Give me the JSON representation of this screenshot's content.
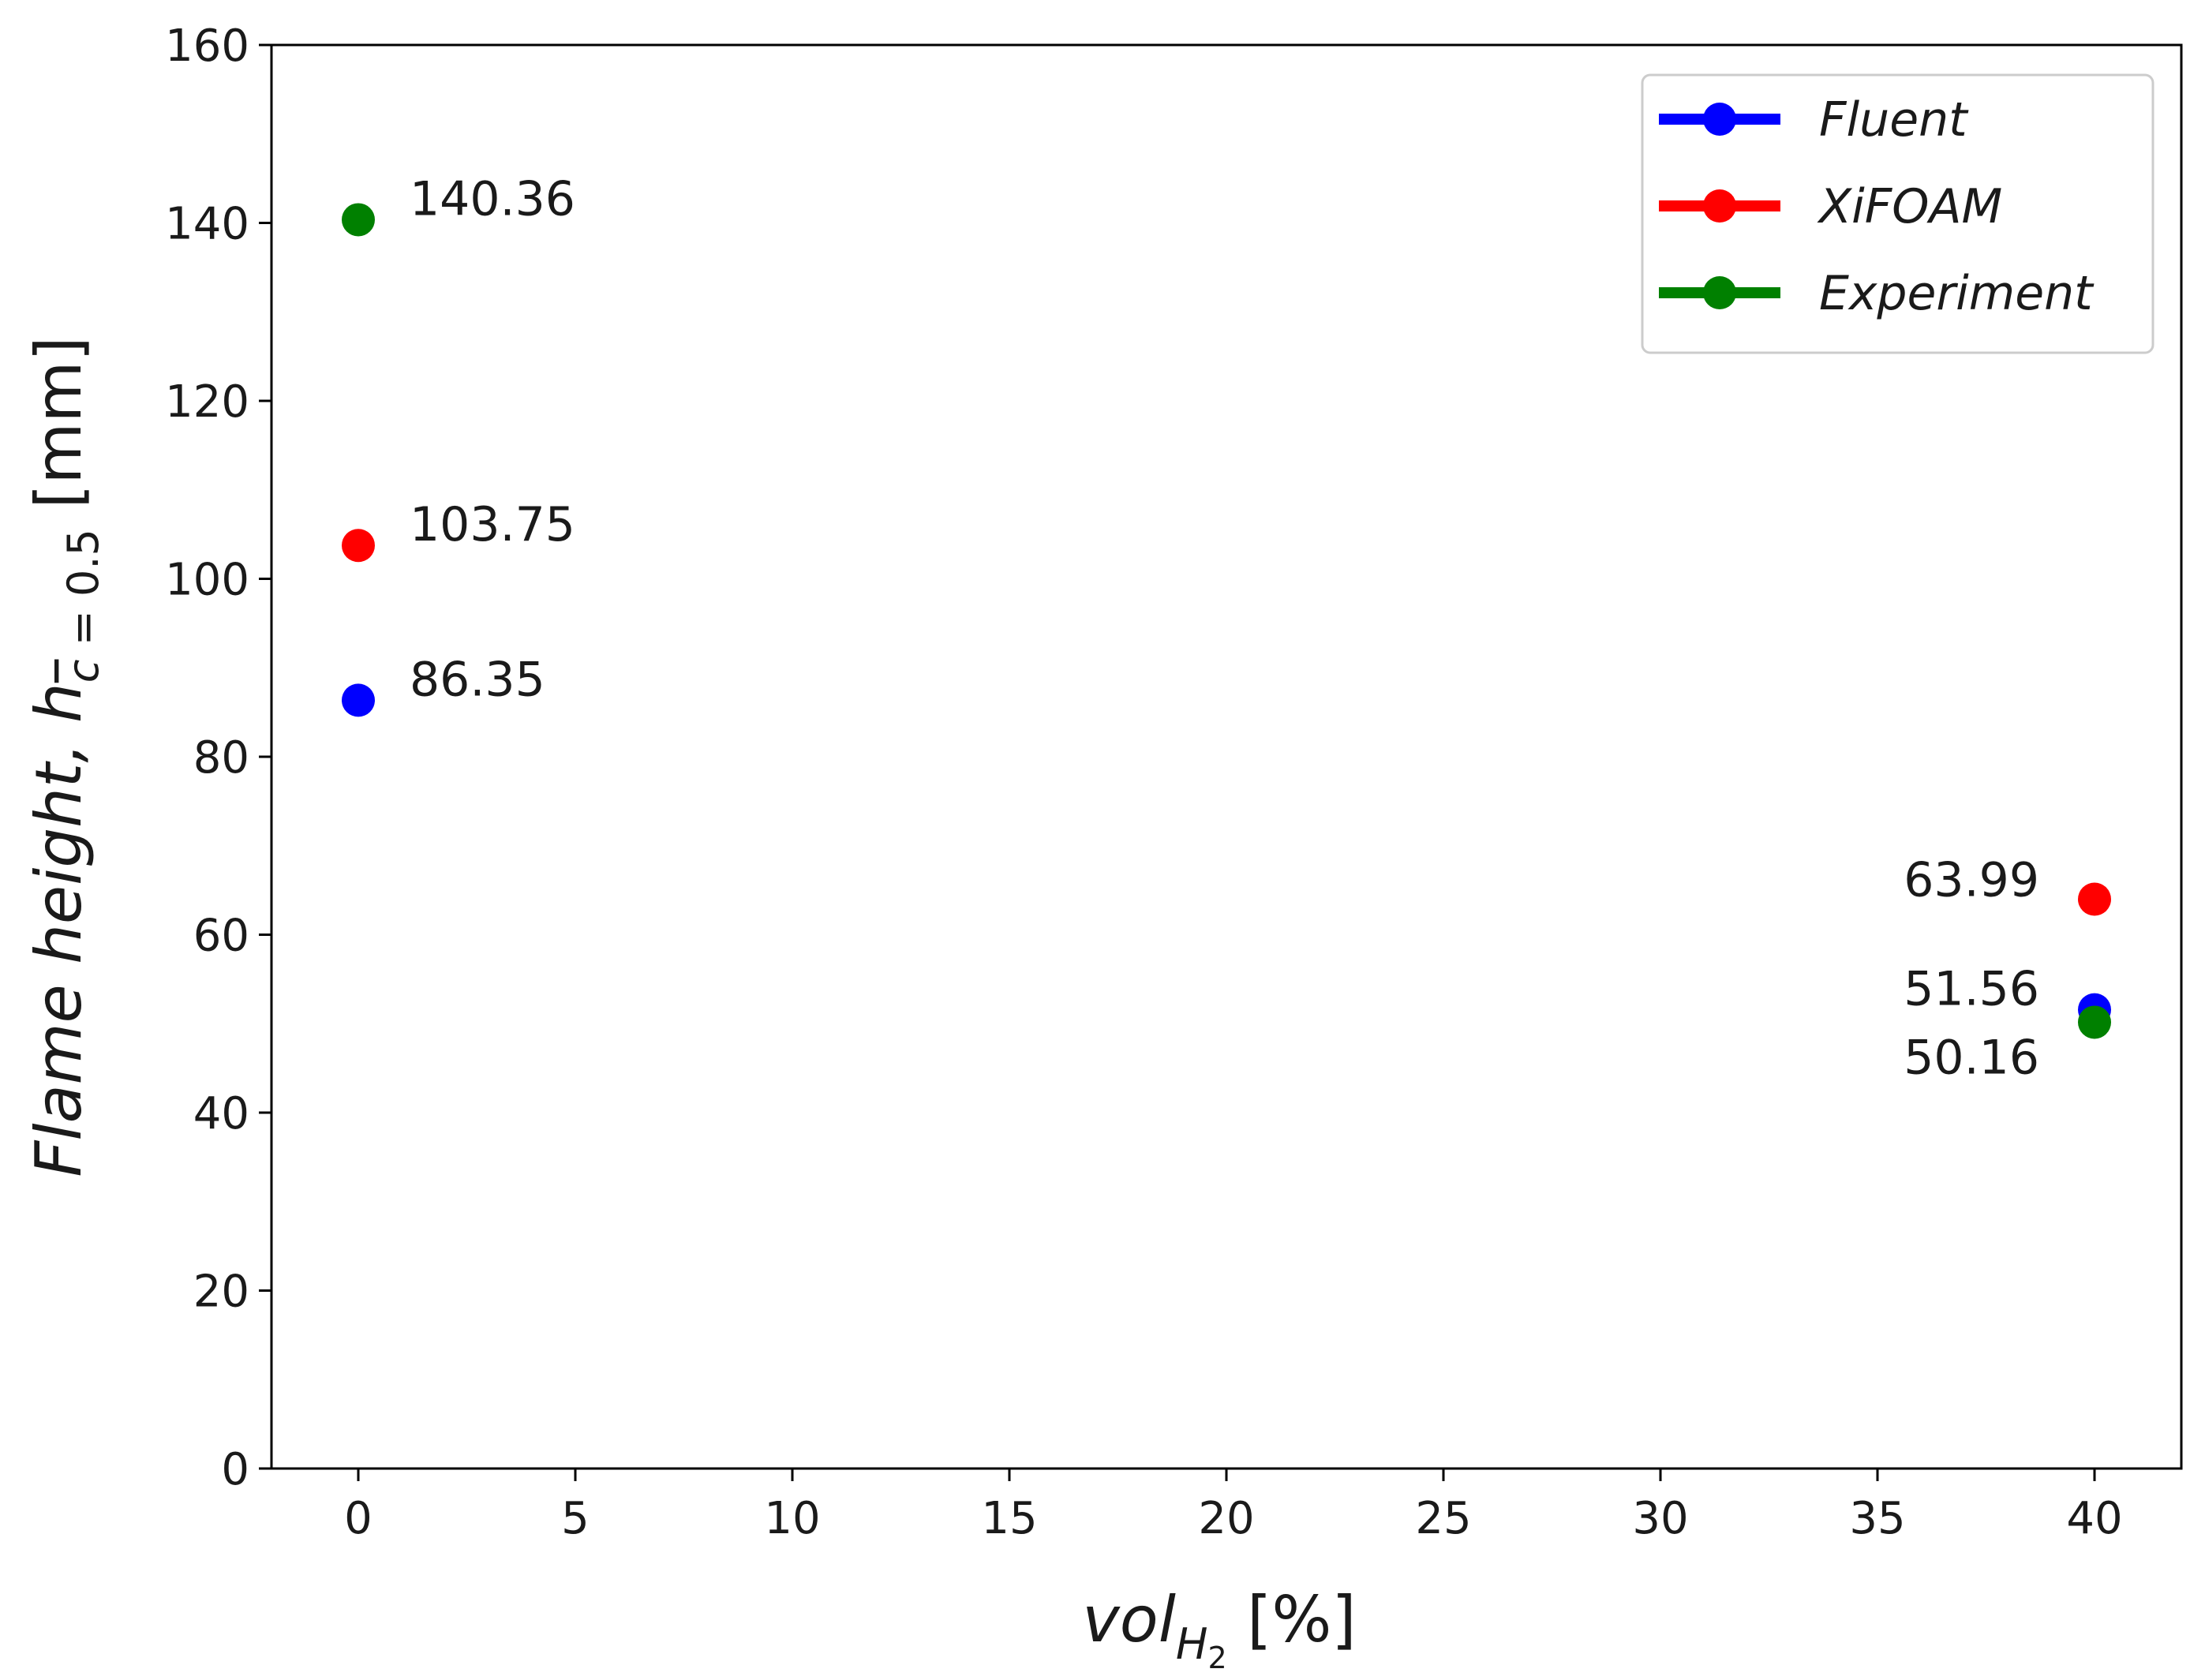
{
  "chart_data": {
    "type": "scatter",
    "title": "",
    "xlabel": {
      "base": "vol",
      "sub": "H",
      "subsub": "2",
      "unit": " [%]"
    },
    "ylabel": {
      "text": "Flame height,  ",
      "sym": "h",
      "sub_c": "c",
      "sub_rest": " = 0.5",
      "unit": " [mm]"
    },
    "xlim": [
      -2,
      42
    ],
    "ylim": [
      0,
      160
    ],
    "xticks": [
      0,
      5,
      10,
      15,
      20,
      25,
      30,
      35,
      40
    ],
    "yticks": [
      0,
      20,
      40,
      60,
      80,
      100,
      120,
      140,
      160
    ],
    "grid": false,
    "legend_position": "top-right",
    "series": [
      {
        "name": "Fluent",
        "color": "#0000ff",
        "x": [
          0,
          40
        ],
        "y": [
          86.35,
          51.56
        ],
        "labels": [
          "86.35",
          "51.56"
        ]
      },
      {
        "name": "XiFOAM",
        "color": "#ff0000",
        "x": [
          0,
          40
        ],
        "y": [
          103.75,
          63.99
        ],
        "labels": [
          "103.75",
          "63.99"
        ]
      },
      {
        "name": "Experiment",
        "color": "#008000",
        "x": [
          0,
          40
        ],
        "y": [
          140.36,
          50.16
        ],
        "labels": [
          "140.36",
          "50.16"
        ]
      }
    ]
  }
}
